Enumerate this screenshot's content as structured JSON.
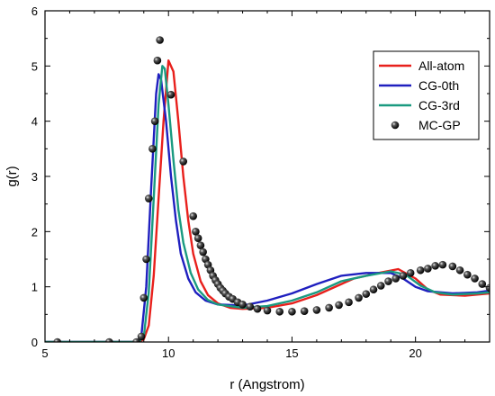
{
  "chart_data": {
    "type": "line",
    "xlabel": "r (Angstrom)",
    "ylabel": "g(r)",
    "xlim": [
      5,
      23
    ],
    "ylim": [
      0,
      6
    ],
    "x_ticks": [
      5,
      10,
      15,
      20
    ],
    "y_ticks": [
      0,
      1,
      2,
      3,
      4,
      5,
      6
    ],
    "grid": false,
    "legend_position": "top-right",
    "series": [
      {
        "name": "All-atom",
        "kind": "line",
        "color": "#e8201c",
        "points": [
          [
            5,
            0
          ],
          [
            8.8,
            0
          ],
          [
            9.0,
            0.05
          ],
          [
            9.2,
            0.3
          ],
          [
            9.4,
            1.2
          ],
          [
            9.6,
            2.6
          ],
          [
            9.8,
            4.0
          ],
          [
            10.0,
            5.1
          ],
          [
            10.2,
            4.9
          ],
          [
            10.4,
            4.0
          ],
          [
            10.6,
            3.0
          ],
          [
            10.8,
            2.2
          ],
          [
            11.0,
            1.6
          ],
          [
            11.3,
            1.1
          ],
          [
            11.6,
            0.85
          ],
          [
            12.0,
            0.7
          ],
          [
            12.5,
            0.62
          ],
          [
            13.0,
            0.6
          ],
          [
            14.0,
            0.62
          ],
          [
            15.0,
            0.7
          ],
          [
            16.0,
            0.85
          ],
          [
            17.0,
            1.05
          ],
          [
            17.5,
            1.15
          ],
          [
            18.5,
            1.25
          ],
          [
            19.3,
            1.32
          ],
          [
            20.0,
            1.15
          ],
          [
            20.5,
            0.95
          ],
          [
            21.0,
            0.86
          ],
          [
            22.0,
            0.84
          ],
          [
            23,
            0.88
          ]
        ]
      },
      {
        "name": "CG-0th",
        "kind": "line",
        "color": "#1f1fbf",
        "points": [
          [
            5,
            0
          ],
          [
            8.7,
            0
          ],
          [
            8.9,
            0.1
          ],
          [
            9.1,
            1.0
          ],
          [
            9.3,
            2.8
          ],
          [
            9.5,
            4.5
          ],
          [
            9.6,
            4.85
          ],
          [
            9.7,
            4.75
          ],
          [
            9.9,
            4.0
          ],
          [
            10.1,
            3.0
          ],
          [
            10.3,
            2.2
          ],
          [
            10.5,
            1.6
          ],
          [
            10.8,
            1.15
          ],
          [
            11.1,
            0.9
          ],
          [
            11.5,
            0.75
          ],
          [
            12.0,
            0.68
          ],
          [
            13.0,
            0.66
          ],
          [
            14.0,
            0.75
          ],
          [
            15.0,
            0.88
          ],
          [
            16.0,
            1.05
          ],
          [
            17.0,
            1.2
          ],
          [
            18.0,
            1.25
          ],
          [
            19.0,
            1.25
          ],
          [
            19.5,
            1.15
          ],
          [
            20.0,
            1.0
          ],
          [
            20.5,
            0.92
          ],
          [
            21.5,
            0.88
          ],
          [
            22.5,
            0.9
          ],
          [
            23,
            0.93
          ]
        ]
      },
      {
        "name": "CG-3rd",
        "kind": "line",
        "color": "#1a9a80",
        "points": [
          [
            5,
            0
          ],
          [
            8.8,
            0
          ],
          [
            9.0,
            0.1
          ],
          [
            9.2,
            0.9
          ],
          [
            9.4,
            2.6
          ],
          [
            9.6,
            4.3
          ],
          [
            9.75,
            5.0
          ],
          [
            9.85,
            4.95
          ],
          [
            10.0,
            4.3
          ],
          [
            10.2,
            3.3
          ],
          [
            10.4,
            2.4
          ],
          [
            10.6,
            1.8
          ],
          [
            10.9,
            1.25
          ],
          [
            11.2,
            0.95
          ],
          [
            11.6,
            0.76
          ],
          [
            12.0,
            0.68
          ],
          [
            13.0,
            0.62
          ],
          [
            14.0,
            0.65
          ],
          [
            15.0,
            0.75
          ],
          [
            16.0,
            0.9
          ],
          [
            17.0,
            1.1
          ],
          [
            18.0,
            1.2
          ],
          [
            19.0,
            1.28
          ],
          [
            19.6,
            1.22
          ],
          [
            20.2,
            1.02
          ],
          [
            20.8,
            0.9
          ],
          [
            21.5,
            0.86
          ],
          [
            22.5,
            0.88
          ],
          [
            23,
            0.9
          ]
        ]
      },
      {
        "name": "MC-GP",
        "kind": "scatter",
        "color": "#000000",
        "points": [
          [
            5.5,
            0
          ],
          [
            7.6,
            0
          ],
          [
            8.7,
            0
          ],
          [
            8.9,
            0.1
          ],
          [
            9.0,
            0.8
          ],
          [
            9.1,
            1.5
          ],
          [
            9.2,
            2.6
          ],
          [
            9.35,
            3.5
          ],
          [
            9.45,
            4.0
          ],
          [
            9.55,
            5.1
          ],
          [
            9.65,
            5.47
          ],
          [
            10.1,
            4.48
          ],
          [
            10.6,
            3.27
          ],
          [
            11.0,
            2.28
          ],
          [
            11.1,
            2.0
          ],
          [
            11.2,
            1.88
          ],
          [
            11.3,
            1.75
          ],
          [
            11.4,
            1.63
          ],
          [
            11.5,
            1.5
          ],
          [
            11.6,
            1.4
          ],
          [
            11.7,
            1.3
          ],
          [
            11.8,
            1.2
          ],
          [
            11.9,
            1.12
          ],
          [
            12.0,
            1.05
          ],
          [
            12.1,
            0.98
          ],
          [
            12.2,
            0.93
          ],
          [
            12.3,
            0.88
          ],
          [
            12.45,
            0.82
          ],
          [
            12.6,
            0.78
          ],
          [
            12.8,
            0.72
          ],
          [
            13.0,
            0.68
          ],
          [
            13.3,
            0.64
          ],
          [
            13.6,
            0.6
          ],
          [
            14.0,
            0.57
          ],
          [
            14.5,
            0.55
          ],
          [
            15.0,
            0.55
          ],
          [
            15.5,
            0.56
          ],
          [
            16.0,
            0.58
          ],
          [
            16.5,
            0.62
          ],
          [
            16.9,
            0.67
          ],
          [
            17.3,
            0.72
          ],
          [
            17.7,
            0.8
          ],
          [
            18.0,
            0.87
          ],
          [
            18.3,
            0.95
          ],
          [
            18.6,
            1.02
          ],
          [
            18.9,
            1.1
          ],
          [
            19.2,
            1.15
          ],
          [
            19.5,
            1.2
          ],
          [
            19.8,
            1.25
          ],
          [
            20.2,
            1.3
          ],
          [
            20.5,
            1.33
          ],
          [
            20.8,
            1.38
          ],
          [
            21.1,
            1.4
          ],
          [
            21.5,
            1.37
          ],
          [
            21.8,
            1.3
          ],
          [
            22.1,
            1.22
          ],
          [
            22.4,
            1.15
          ],
          [
            22.7,
            1.05
          ],
          [
            23.0,
            0.98
          ]
        ]
      }
    ]
  }
}
